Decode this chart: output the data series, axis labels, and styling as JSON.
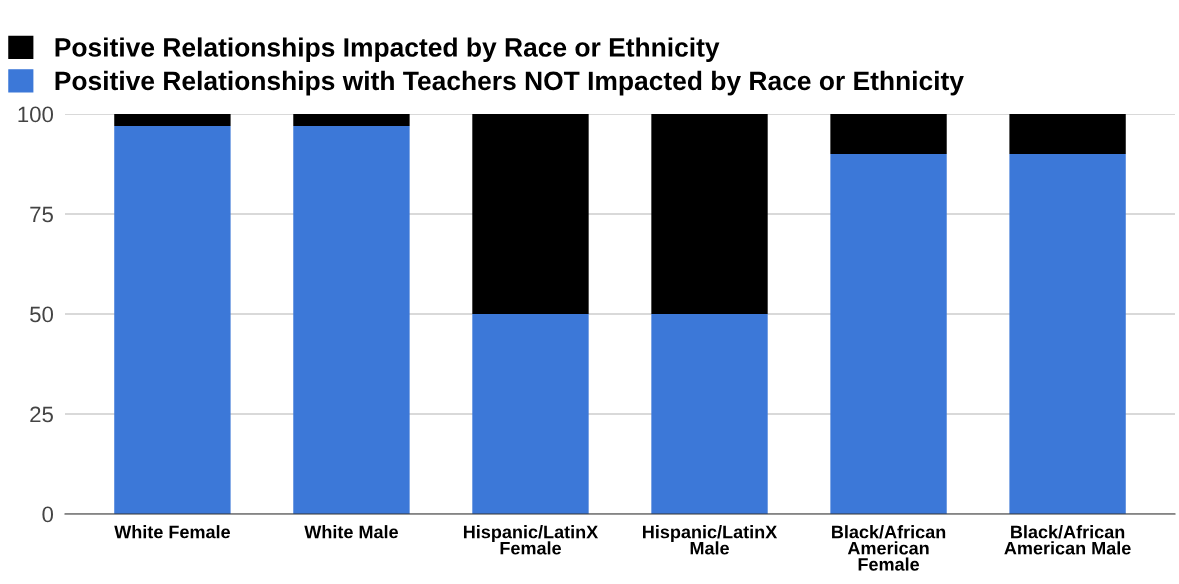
{
  "chart_data": {
    "type": "bar",
    "stacked": true,
    "categories": [
      "White Female",
      "White Male",
      "Hispanic/LatinX\nFemale",
      "Hispanic/LatinX\nMale",
      "Black/African\nAmerican\nFemale",
      "Black/African\nAmerican Male"
    ],
    "series": [
      {
        "name": "Positive Relationships with Teachers NOT Impacted by Race or Ethnicity",
        "color": "#3c78d8",
        "values": [
          97,
          97,
          50,
          50,
          90,
          90
        ]
      },
      {
        "name": "Positive Relationships Impacted by Race or Ethnicity",
        "color": "#000000",
        "values": [
          3,
          3,
          50,
          50,
          10,
          10
        ]
      }
    ],
    "ylim": [
      0,
      100
    ],
    "yticks": [
      0,
      25,
      50,
      75,
      100
    ],
    "grid": "y",
    "legend": "top"
  }
}
